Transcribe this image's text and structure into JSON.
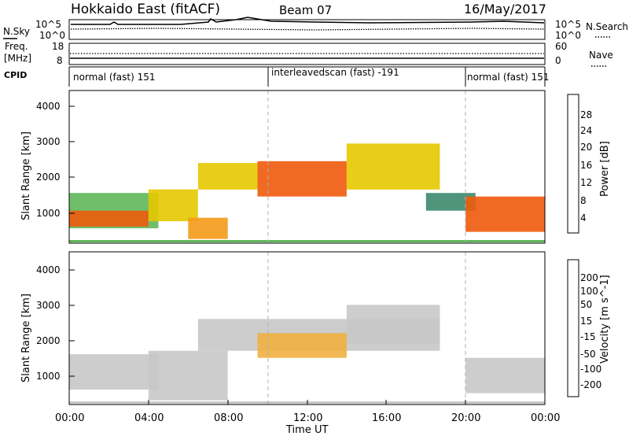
{
  "header": {
    "title": "Hokkaido East (fitACF)",
    "beam": "Beam 07",
    "date": "16/May/2017"
  },
  "left_labels": {
    "nsky": "N.Sky",
    "freq_line1": "Freq.",
    "freq_line2": "[MHz]",
    "cpid": "CPID"
  },
  "right_labels": {
    "nsearch": "N.Search",
    "nave": "Nave"
  },
  "noise_axis_ticks": [
    "10^5",
    "10^0"
  ],
  "freq_axis_ticks": [
    "18",
    "8"
  ],
  "nave_axis_ticks": [
    "60",
    "0"
  ],
  "cpid_segments": [
    {
      "label": "normal (fast) 151",
      "start_hour": 0,
      "end_hour": 10
    },
    {
      "label": "interleavedscan (fast) -191",
      "start_hour": 10,
      "end_hour": 20
    },
    {
      "label": "normal (fast) 151",
      "start_hour": 20,
      "end_hour": 24
    }
  ],
  "x_axis": {
    "label": "Time UT",
    "ticks": [
      "00:00",
      "04:00",
      "08:00",
      "12:00",
      "16:00",
      "20:00",
      "00:00"
    ]
  },
  "power_panel": {
    "ylabel": "Slant Range [km]",
    "yticks": [
      "4000",
      "3000",
      "2000",
      "1000"
    ],
    "colorbar_label": "Power [dB]",
    "colorbar_ticks": [
      "28",
      "24",
      "20",
      "16",
      "12",
      "8",
      "4"
    ],
    "colors": [
      "#0000e6",
      "#1f4fa8",
      "#3c8a6e",
      "#5fb85a",
      "#e6c800",
      "#f59a1a",
      "#ee5a0c",
      "#e60000"
    ]
  },
  "velocity_panel": {
    "ylabel": "Slant Range [km]",
    "yticks": [
      "4000",
      "3000",
      "2000",
      "1000"
    ],
    "colorbar_label": "Velocity [m s^-1]",
    "colorbar_ticks": [
      "200",
      "100",
      "50",
      "15",
      "-15",
      "-50",
      "-100",
      "-200"
    ],
    "colors": [
      "#1f2fb0",
      "#2f6e9e",
      "#3d8f56",
      "#77c83a",
      "#c8c8c8",
      "#f0b040",
      "#f08010",
      "#f04010",
      "#e60000"
    ]
  },
  "chart_data": {
    "type": "heatmap",
    "x_range_hours": [
      0,
      24
    ],
    "y_range_km": [
      180,
      4500
    ],
    "panels": [
      {
        "name": "Power",
        "unit": "dB",
        "regions": [
          {
            "t0": 0.0,
            "t1": 4.5,
            "r0": 600,
            "r1": 1600,
            "value": 16
          },
          {
            "t0": 0.0,
            "t1": 4.0,
            "r0": 650,
            "r1": 1100,
            "value": 26
          },
          {
            "t0": 4.0,
            "t1": 6.5,
            "r0": 800,
            "r1": 1700,
            "value": 18
          },
          {
            "t0": 6.0,
            "t1": 8.0,
            "r0": 300,
            "r1": 900,
            "value": 22
          },
          {
            "t0": 6.5,
            "t1": 9.5,
            "r0": 1700,
            "r1": 2450,
            "value": 20
          },
          {
            "t0": 9.5,
            "t1": 14.0,
            "r0": 1500,
            "r1": 2500,
            "value": 28
          },
          {
            "t0": 14.0,
            "t1": 18.7,
            "r0": 1700,
            "r1": 3000,
            "value": 18
          },
          {
            "t0": 18.0,
            "t1": 20.5,
            "r0": 1100,
            "r1": 1600,
            "value": 12
          },
          {
            "t0": 20.0,
            "t1": 24.0,
            "r0": 500,
            "r1": 1500,
            "value": 26
          }
        ]
      },
      {
        "name": "Velocity",
        "unit": "m s^-1",
        "regions": [
          {
            "t0": 0.0,
            "t1": 4.5,
            "r0": 600,
            "r1": 1600,
            "value": 0
          },
          {
            "t0": 4.0,
            "t1": 8.0,
            "r0": 300,
            "r1": 1700,
            "value": 0
          },
          {
            "t0": 6.5,
            "t1": 18.7,
            "r0": 1700,
            "r1": 2600,
            "value": 0
          },
          {
            "t0": 9.5,
            "t1": 14.0,
            "r0": 1500,
            "r1": 2200,
            "value": -30
          },
          {
            "t0": 14.0,
            "t1": 18.7,
            "r0": 1900,
            "r1": 3000,
            "value": 0
          },
          {
            "t0": 20.0,
            "t1": 24.0,
            "r0": 500,
            "r1": 1500,
            "value": 0
          }
        ]
      }
    ]
  }
}
